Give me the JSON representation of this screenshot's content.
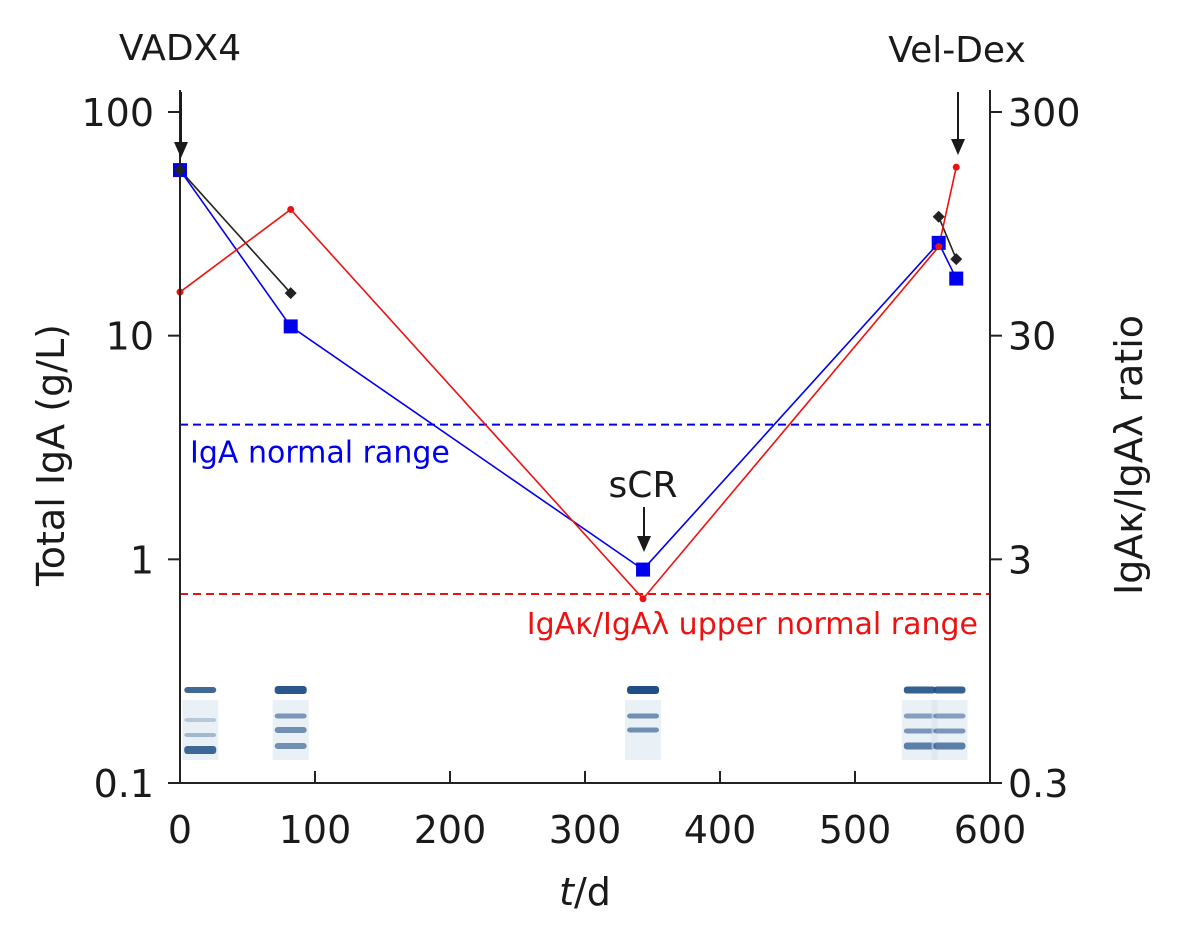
{
  "chart_data": {
    "type": "line",
    "title": "",
    "xlabel_italic": "t",
    "xlabel_rest": "/d",
    "ylabel_left": "Total IgA (g/L)",
    "ylabel_right": "IgAκ/IgAλ ratio",
    "xlim": [
      0,
      600
    ],
    "ylim_left": [
      0.1,
      100
    ],
    "ylim_right": [
      0.3,
      300
    ],
    "yscale": "log",
    "x_ticks": [
      0,
      100,
      200,
      300,
      400,
      500,
      600
    ],
    "x_tick_labels": [
      "0",
      "100",
      "200",
      "300",
      "400",
      "500",
      "600"
    ],
    "y_left_ticks": [
      0.1,
      1,
      10,
      100
    ],
    "y_left_tick_labels": [
      "0.1",
      "1",
      "10",
      "100"
    ],
    "y_right_ticks": [
      0.3,
      3,
      30,
      300
    ],
    "y_right_tick_labels": [
      "0.3",
      "3",
      "30",
      "300"
    ],
    "series": [
      {
        "axis": "left",
        "color": "#0000ee",
        "marker": "square",
        "x": [
          0,
          82,
          343,
          562,
          575
        ],
        "y": [
          55,
          11,
          0.9,
          26,
          18
        ]
      },
      {
        "axis": "left",
        "color": "#222222",
        "marker": "diamond",
        "x": [
          0,
          82
        ],
        "y": [
          55,
          15.5
        ]
      },
      {
        "axis": "left",
        "color": "#222222",
        "marker": "diamond",
        "x": [
          562,
          575
        ],
        "y": [
          34,
          22
        ]
      },
      {
        "axis": "right",
        "color": "#ee1111",
        "marker": "dot",
        "x": [
          0,
          82,
          343,
          562,
          575
        ],
        "y": [
          47,
          110,
          2,
          75,
          170
        ]
      }
    ],
    "reference_lines": [
      {
        "axis": "left",
        "y": 4,
        "color": "#0000ee",
        "label": "IgA normal range"
      },
      {
        "axis": "right",
        "y": 2.1,
        "color": "#ee1111",
        "label": "IgAκ/IgAλ upper normal range"
      }
    ],
    "annotations": [
      {
        "text": "VADX4",
        "x": 0
      },
      {
        "text": "sCR",
        "x": 343
      },
      {
        "text": "Vel-Dex",
        "x": 575
      }
    ],
    "gel_lanes_x": [
      15,
      82,
      343,
      548,
      570
    ]
  }
}
